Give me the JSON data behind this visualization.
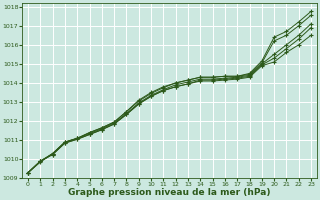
{
  "bg_color": "#cce8e0",
  "grid_color": "#ffffff",
  "line_color": "#2d5a1b",
  "marker_color": "#2d5a1b",
  "xlabel": "Graphe pression niveau de la mer (hPa)",
  "xlabel_fontsize": 6.5,
  "xlim_min": -0.5,
  "xlim_max": 23.5,
  "ylim_min": 1009.0,
  "ylim_max": 1018.2,
  "yticks": [
    1009,
    1010,
    1011,
    1012,
    1013,
    1014,
    1015,
    1016,
    1017,
    1018
  ],
  "xticks": [
    0,
    1,
    2,
    3,
    4,
    5,
    6,
    7,
    8,
    9,
    10,
    11,
    12,
    13,
    14,
    15,
    16,
    17,
    18,
    19,
    20,
    21,
    22,
    23
  ],
  "series": [
    [
      1009.3,
      1009.9,
      1010.25,
      1010.85,
      1011.05,
      1011.3,
      1011.55,
      1011.85,
      1012.35,
      1012.9,
      1013.3,
      1013.6,
      1013.8,
      1013.95,
      1014.1,
      1014.1,
      1014.15,
      1014.2,
      1014.3,
      1014.9,
      1015.1,
      1015.6,
      1016.0,
      1016.5
    ],
    [
      1009.3,
      1009.9,
      1010.25,
      1010.85,
      1011.05,
      1011.3,
      1011.55,
      1011.85,
      1012.35,
      1012.9,
      1013.3,
      1013.6,
      1013.8,
      1013.95,
      1014.15,
      1014.15,
      1014.2,
      1014.25,
      1014.35,
      1014.95,
      1015.3,
      1015.8,
      1016.3,
      1016.9
    ],
    [
      1009.3,
      1009.9,
      1010.3,
      1010.9,
      1011.1,
      1011.35,
      1011.6,
      1011.9,
      1012.4,
      1012.95,
      1013.35,
      1013.65,
      1013.9,
      1014.05,
      1014.2,
      1014.2,
      1014.25,
      1014.3,
      1014.4,
      1015.0,
      1015.5,
      1016.0,
      1016.5,
      1017.1
    ],
    [
      1009.3,
      1009.9,
      1010.3,
      1010.9,
      1011.1,
      1011.4,
      1011.65,
      1011.95,
      1012.5,
      1013.1,
      1013.5,
      1013.8,
      1014.0,
      1014.15,
      1014.3,
      1014.3,
      1014.35,
      1014.35,
      1014.45,
      1015.05,
      1016.2,
      1016.5,
      1017.0,
      1017.55
    ]
  ],
  "series_upper": [
    [
      1009.3,
      1009.85,
      1010.3,
      1010.9,
      1011.1,
      1011.4,
      1011.65,
      1011.95,
      1012.5,
      1013.05,
      1013.45,
      1013.75,
      1014.0,
      1014.15,
      1014.3,
      1014.3,
      1014.35,
      1014.35,
      1014.5,
      1015.15,
      1016.4,
      1016.7,
      1017.2,
      1017.75
    ]
  ]
}
